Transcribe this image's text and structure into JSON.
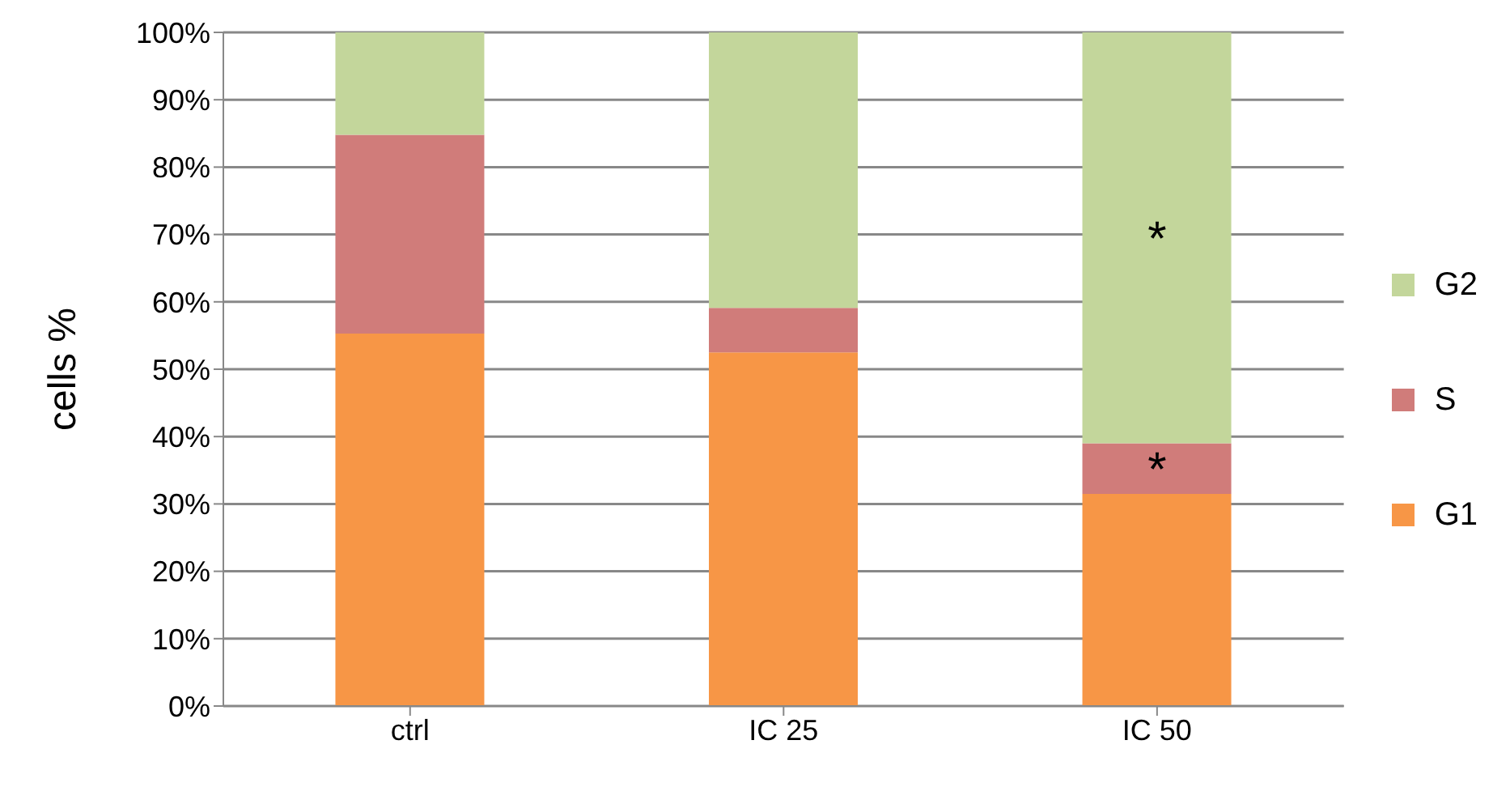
{
  "chart_data": {
    "type": "bar",
    "stacked": true,
    "ylabel": "cells %",
    "categories": [
      "ctrl",
      "IC 25",
      "IC 50"
    ],
    "series": [
      {
        "name": "G1",
        "color": "#f79646",
        "values": [
          55.3,
          52.5,
          31.5
        ]
      },
      {
        "name": "S",
        "color": "#d07c7a",
        "values": [
          29.5,
          6.6,
          7.5
        ]
      },
      {
        "name": "G2",
        "color": "#c3d69b",
        "values": [
          15.2,
          40.9,
          61.0
        ]
      }
    ],
    "ylim": [
      0,
      100
    ],
    "yticks": [
      {
        "value": 0,
        "label": "0%"
      },
      {
        "value": 10,
        "label": "10%"
      },
      {
        "value": 20,
        "label": "20%"
      },
      {
        "value": 30,
        "label": "30%"
      },
      {
        "value": 40,
        "label": "40%"
      },
      {
        "value": 50,
        "label": "50%"
      },
      {
        "value": 60,
        "label": "60%"
      },
      {
        "value": 70,
        "label": "70%"
      },
      {
        "value": 80,
        "label": "80%"
      },
      {
        "value": 90,
        "label": "90%"
      },
      {
        "value": 100,
        "label": "100%"
      }
    ],
    "grid": "y",
    "legend": "right",
    "annotations": [
      "*",
      "*"
    ]
  }
}
